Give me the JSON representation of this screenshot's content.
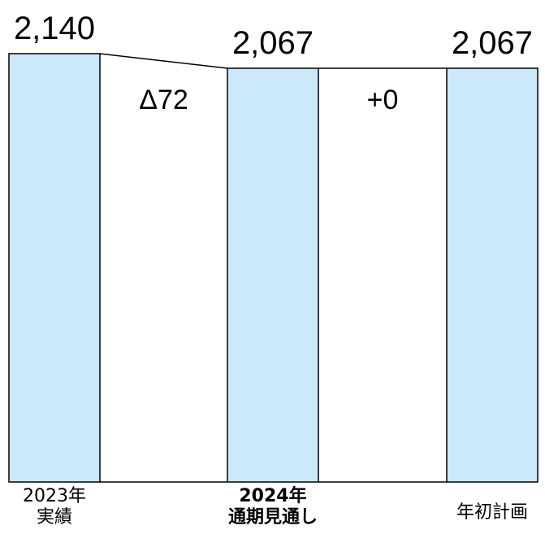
{
  "chart_data": {
    "type": "bar",
    "categories": [
      "2023年\n実績",
      "2024年\n通期見通し",
      "年初計画"
    ],
    "values": [
      2140,
      2067,
      2067
    ],
    "value_labels": [
      "2,140",
      "2,067",
      "2,067"
    ],
    "differences": [
      "Δ72",
      "+0"
    ],
    "highlighted_category_index": 1,
    "ylim": [
      0,
      2140
    ],
    "grid": false,
    "legend": "none",
    "colors": {
      "bar_fill": "#cce8fb",
      "bar_stroke": "#000000",
      "connector": "#000000"
    }
  }
}
